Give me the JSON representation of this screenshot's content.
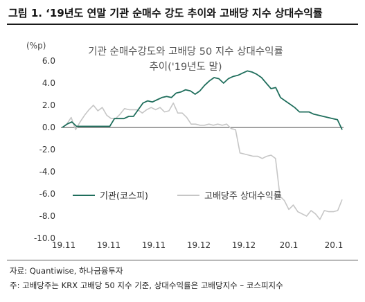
{
  "figure_title": "그림 1. ‘19년도 연말 기관 순매수 강도 추이와 고배당 지수 상대수익률",
  "source": "자료: Quantiwise, 하나금융투자",
  "footnote": "주: 고배당주는 KRX 고배당 50 지수 기준, 상대수익률은 고배당지수 – 코스피지수",
  "colors": {
    "institution": "#1f6e5c",
    "high_dividend": "#c6c6c6",
    "text": "#222222",
    "axis_text": "#333333"
  },
  "chart_data": {
    "type": "line",
    "title": "기관 순매수강도와 고배당 50 지수 상대수익률",
    "subtitle": "추이('19년도 말)",
    "ylabel": "(%p)",
    "xlabel": "",
    "ylim": [
      -10.0,
      6.0
    ],
    "yticks": [
      "6.0",
      "4.0",
      "2.0",
      "0.0",
      "-2.0",
      "-4.0",
      "-6.0",
      "-8.0",
      "-10.0"
    ],
    "xticks": [
      "19.11",
      "19.11",
      "19.11",
      "19.12",
      "19.12",
      "20.1",
      "20.1"
    ],
    "grid": false,
    "legend_position": "bottom-center",
    "series": [
      {
        "name": "기관(코스피)",
        "values": [
          0.0,
          0.3,
          0.5,
          0.1,
          0.1,
          0.1,
          0.1,
          0.1,
          0.1,
          0.1,
          0.1,
          0.8,
          0.8,
          0.8,
          1.0,
          1.0,
          1.6,
          2.2,
          2.4,
          2.3,
          2.5,
          2.7,
          2.8,
          2.7,
          3.1,
          3.2,
          3.4,
          3.3,
          3.0,
          3.3,
          3.8,
          4.2,
          4.5,
          4.4,
          4.0,
          4.4,
          4.6,
          4.7,
          4.9,
          5.1,
          5.0,
          4.8,
          4.5,
          4.0,
          3.5,
          3.6,
          2.7,
          2.4,
          2.1,
          1.8,
          1.4,
          1.4,
          1.4,
          1.2,
          1.1,
          1.0,
          0.9,
          0.8,
          0.7,
          -0.2
        ]
      },
      {
        "name": "고배당주 상대수익률",
        "values": [
          0.0,
          0.3,
          0.9,
          -0.2,
          0.5,
          1.1,
          1.6,
          2.0,
          1.5,
          1.8,
          1.1,
          0.8,
          0.8,
          1.2,
          1.7,
          1.6,
          1.6,
          1.6,
          1.3,
          1.6,
          1.8,
          1.6,
          1.8,
          1.4,
          1.5,
          2.2,
          1.3,
          1.3,
          0.9,
          0.3,
          0.3,
          0.2,
          0.2,
          0.3,
          0.2,
          0.3,
          0.2,
          0.3,
          -0.1,
          -0.2,
          -2.3,
          -2.4,
          -2.5,
          -2.6,
          -2.6,
          -2.8,
          -2.6,
          -2.5,
          -2.8,
          -6.2,
          -6.6,
          -7.4,
          -7.0,
          -7.6,
          -7.8,
          -8.0,
          -7.5,
          -7.8,
          -8.3,
          -7.5,
          -7.6,
          -7.6,
          -7.5,
          -6.5
        ]
      }
    ]
  }
}
